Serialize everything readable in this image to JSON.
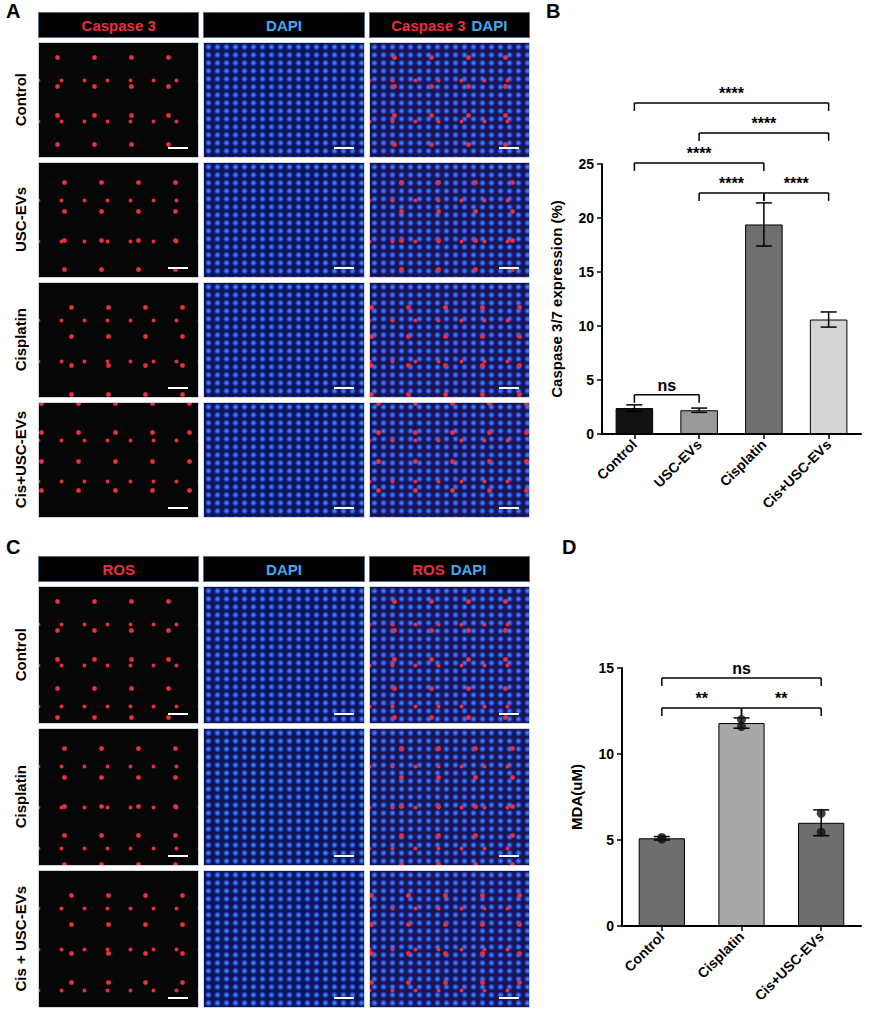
{
  "image_panels": [
    {
      "letter": "A",
      "columns": [
        [
          {
            "text": "Caspase 3",
            "color": "#e8303a"
          }
        ],
        [
          {
            "text": "DAPI",
            "color": "#3fa9f5"
          }
        ],
        [
          {
            "text": "Caspase 3",
            "color": "#e8303a"
          },
          {
            "text": "DAPI",
            "color": "#3fa9f5"
          }
        ]
      ],
      "rows": [
        "Control",
        "USC-EVs",
        "Cisplatin",
        "Cis+USC-EVs"
      ]
    },
    {
      "letter": "C",
      "columns": [
        [
          {
            "text": "ROS",
            "color": "#e8303a"
          }
        ],
        [
          {
            "text": "DAPI",
            "color": "#3fa9f5"
          }
        ],
        [
          {
            "text": "ROS",
            "color": "#e8303a"
          },
          {
            "text": "DAPI",
            "color": "#3fa9f5"
          }
        ]
      ],
      "rows": [
        "Control",
        "Cisplatin",
        "Cis + USC-EVs"
      ]
    }
  ],
  "chart_data": [
    {
      "letter": "B",
      "type": "bar",
      "categories": [
        "Control",
        "USC-EVs",
        "Cisplatin",
        "Cis+USC-EVs"
      ],
      "values": [
        2.4,
        2.2,
        19.4,
        10.6
      ],
      "errors": [
        0.3,
        0.2,
        2.0,
        0.7
      ],
      "colors": [
        "#111111",
        "#9a9a9a",
        "#6f6f6f",
        "#d4d4d4"
      ],
      "y_label": "Caspase 3/7 expression (%)",
      "ylim": [
        0,
        25
      ],
      "yticks": [
        0,
        5,
        10,
        15,
        20,
        25
      ],
      "comparisons": [
        {
          "from": "Control",
          "to": "USC-EVs",
          "label": "ns"
        },
        {
          "from": "USC-EVs",
          "to": "Cisplatin",
          "label": "****"
        },
        {
          "from": "Control",
          "to": "Cisplatin",
          "label": "****"
        },
        {
          "from": "Cisplatin",
          "to": "Cis+USC-EVs",
          "label": "****"
        },
        {
          "from": "USC-EVs",
          "to": "Cis+USC-EVs",
          "label": "****"
        },
        {
          "from": "Control",
          "to": "Cis+USC-EVs",
          "label": "****"
        }
      ]
    },
    {
      "letter": "D",
      "type": "bar",
      "categories": [
        "Control",
        "Cisplatin",
        "Cis+USC-EVs"
      ],
      "values": [
        5.1,
        11.8,
        6.0
      ],
      "errors": [
        0.1,
        0.3,
        0.75
      ],
      "points": [
        [
          5.05,
          5.15
        ],
        [
          11.6,
          12.0
        ],
        [
          5.45,
          6.55
        ]
      ],
      "colors": [
        "#6e6e6e",
        "#a8a8a8",
        "#6e6e6e"
      ],
      "y_label": "MDA(uM)",
      "ylim": [
        0,
        15
      ],
      "yticks": [
        0,
        5,
        10,
        15
      ],
      "comparisons": [
        {
          "from": "Control",
          "to": "Cisplatin",
          "label": "**"
        },
        {
          "from": "Cisplatin",
          "to": "Cis+USC-EVs",
          "label": "**"
        },
        {
          "from": "Control",
          "to": "Cis+USC-EVs",
          "label": "ns"
        }
      ]
    }
  ]
}
